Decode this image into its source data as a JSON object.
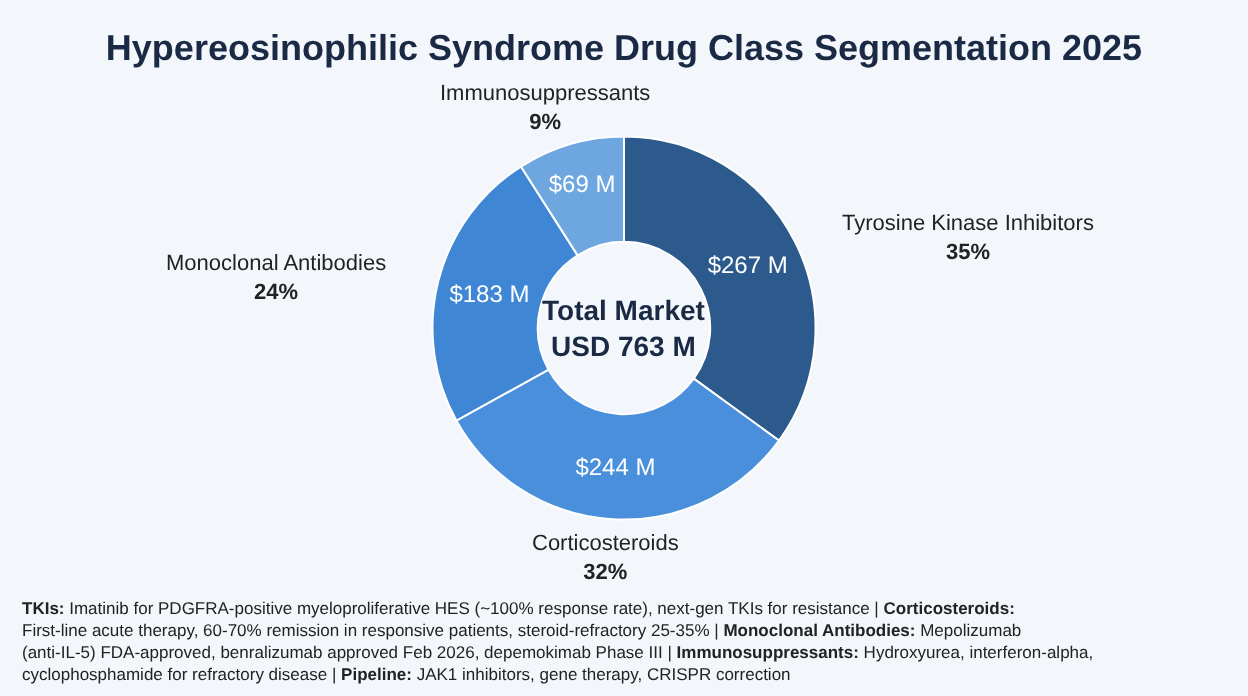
{
  "chart_data": {
    "type": "donut",
    "title": "Hypereosinophilic Syndrome Drug Class Segmentation 2025",
    "categories": [
      "Tyrosine Kinase Inhibitors",
      "Corticosteroids",
      "Monoclonal Antibodies",
      "Immunosuppressants"
    ],
    "values": [
      267,
      244,
      183,
      69
    ],
    "value_labels": [
      "$267 M",
      "$244 M",
      "$183 M",
      "$69 M"
    ],
    "colors": [
      "#2c5a8c",
      "#4a8fdb",
      "#3f86d4",
      "#6ea6e0"
    ],
    "legend": false,
    "annotations": [
      {
        "text": "35%",
        "x": "Tyrosine Kinase Inhibitors"
      },
      {
        "text": "32%",
        "x": "Corticosteroids"
      },
      {
        "text": "24%",
        "x": "Monoclonal Antibodies"
      },
      {
        "text": "9%",
        "x": "Immunosuppressants"
      },
      "Total Market\nUSD 763 M",
      "TKIs: Imatinib for PDGFRA-positive myeloproliferative HES (~100% response rate), next-gen TKIs for resistance | Corticosteroids: First-line acute therapy, 60-70% remission in responsive patients, steroid-refractory 25-35% | Monoclonal Antibodies: Mepolizumab (anti-IL-5) FDA-approved, benralizumab approved Feb 2026, depemokimab Phase III | Immunosuppressants: Hydroxyurea, interferon-alpha, cyclophosphamide for refractory disease | Pipeline: JAK1 inhibitors, gene therapy, CRISPR correction"
    ]
  }
}
